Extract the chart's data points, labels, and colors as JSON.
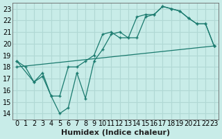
{
  "xlabel": "Humidex (Indice chaleur)",
  "bg_color": "#c8ece8",
  "grid_color": "#b0d8d4",
  "line_color": "#1a7a6e",
  "xlim": [
    -0.5,
    23.5
  ],
  "ylim": [
    13.5,
    23.5
  ],
  "xticks": [
    0,
    1,
    2,
    3,
    4,
    5,
    6,
    7,
    8,
    9,
    10,
    11,
    12,
    13,
    14,
    15,
    16,
    17,
    18,
    19,
    20,
    21,
    22,
    23
  ],
  "yticks": [
    14,
    15,
    16,
    17,
    18,
    19,
    20,
    21,
    22,
    23
  ],
  "line1_x": [
    0,
    1,
    2,
    3,
    4,
    5,
    6,
    7,
    8,
    9,
    10,
    11,
    12,
    13,
    14,
    15,
    16,
    17,
    18,
    19,
    20,
    21,
    22,
    23
  ],
  "line1_y": [
    18.5,
    18.0,
    16.7,
    17.5,
    15.5,
    15.5,
    18.0,
    18.0,
    18.5,
    19.0,
    20.8,
    21.0,
    20.5,
    20.5,
    22.3,
    22.5,
    22.5,
    23.2,
    23.0,
    22.8,
    22.2,
    21.7,
    21.7,
    19.8
  ],
  "line2_x": [
    0,
    2,
    3,
    4,
    5,
    6,
    7,
    8,
    9,
    10,
    11,
    12,
    13,
    14,
    15,
    16,
    17,
    18,
    19,
    20,
    21,
    22,
    23
  ],
  "line2_y": [
    18.5,
    16.7,
    17.2,
    15.5,
    14.0,
    14.5,
    17.5,
    15.3,
    18.5,
    19.5,
    20.8,
    21.0,
    20.5,
    20.5,
    22.3,
    22.5,
    23.2,
    23.0,
    22.8,
    22.2,
    21.7,
    21.7,
    19.8
  ],
  "line3_x": [
    0,
    23
  ],
  "line3_y": [
    18.0,
    19.8
  ],
  "fontsize_label": 8,
  "tick_fontsize": 7
}
